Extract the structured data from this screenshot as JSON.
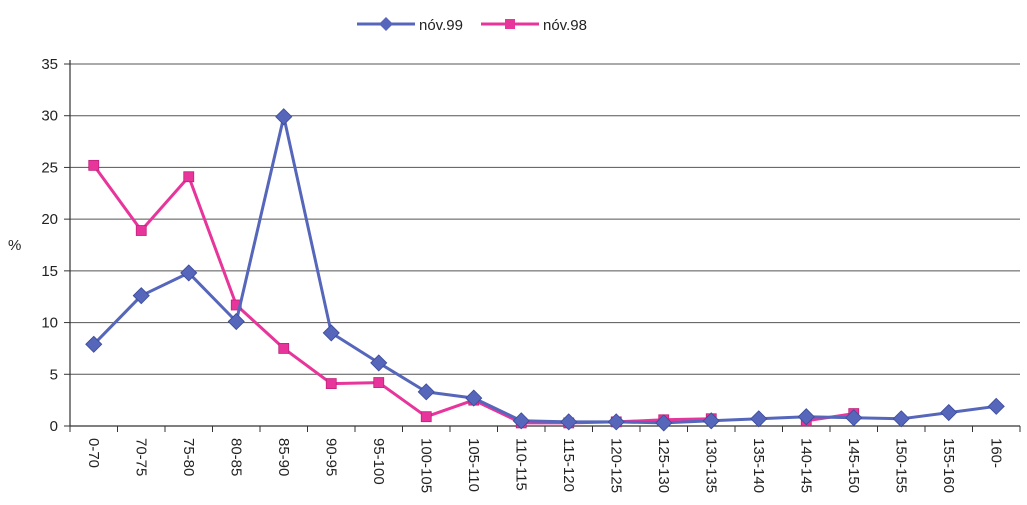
{
  "chart_data": {
    "type": "line",
    "title": "",
    "xlabel": "",
    "ylabel": "%",
    "ylim": [
      0,
      35
    ],
    "yticks": [
      "0",
      "5",
      "10",
      "15",
      "20",
      "25",
      "30",
      "35"
    ],
    "grid": "horizontal",
    "legend_position": "top-center",
    "categories": [
      "0-70",
      "70-75",
      "75-80",
      "80-85",
      "85-90",
      "90-95",
      "95-100",
      "100-105",
      "105-110",
      "110-115",
      "115-120",
      "120-125",
      "125-130",
      "130-135",
      "135-140",
      "140-145",
      "145-150",
      "150-155",
      "155-160",
      "160-"
    ],
    "series": [
      {
        "name": "nóv.99",
        "color": "#5566bb",
        "marker": "diamond",
        "values": [
          7.9,
          12.6,
          14.8,
          10.1,
          29.9,
          9.0,
          6.1,
          3.3,
          2.7,
          0.5,
          0.4,
          0.4,
          0.3,
          0.5,
          0.7,
          0.9,
          0.8,
          0.7,
          1.3,
          1.9
        ]
      },
      {
        "name": "nóv.98",
        "color": "#e8359b",
        "marker": "square",
        "values": [
          25.2,
          18.9,
          24.1,
          11.7,
          7.5,
          4.1,
          4.2,
          0.9,
          2.5,
          0.3,
          0.3,
          0.4,
          0.6,
          0.7,
          null,
          0.5,
          1.2,
          null,
          null,
          null
        ]
      }
    ]
  }
}
